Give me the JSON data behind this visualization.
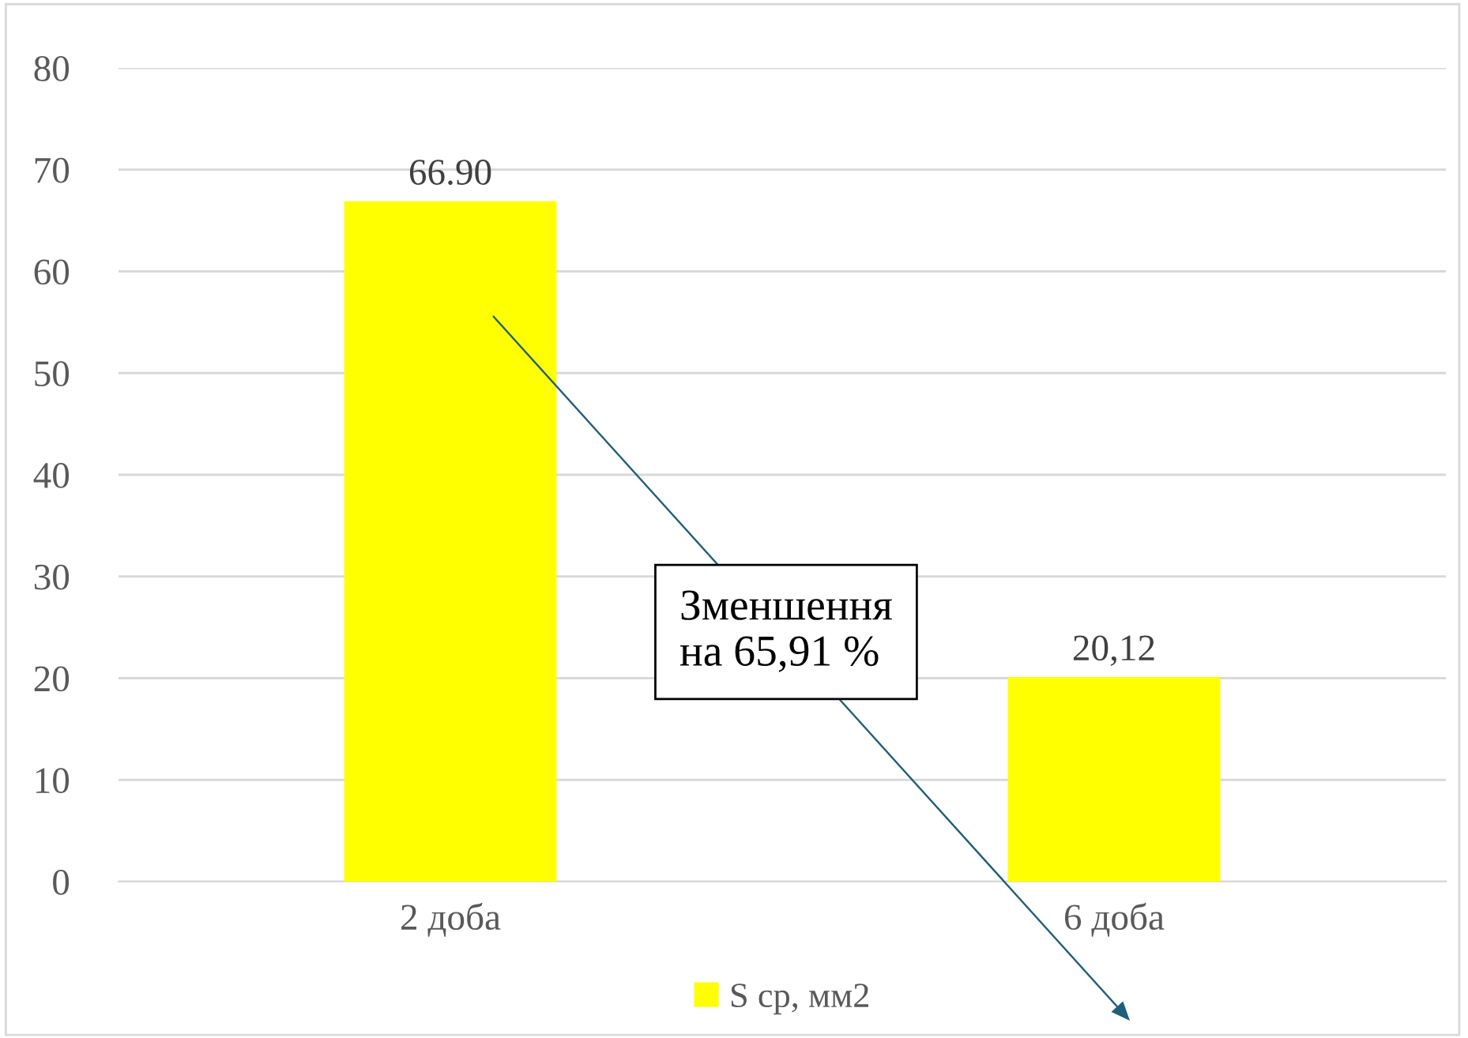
{
  "chart_data": {
    "type": "bar",
    "categories": [
      "2 доба",
      "6 доба"
    ],
    "series": [
      {
        "name": "S ср, мм2",
        "color": "#ffff00",
        "values": [
          66.9,
          20.12
        ]
      }
    ],
    "value_labels": [
      "66.90",
      "20,12"
    ],
    "ylim": [
      0,
      80
    ],
    "yticks": [
      0,
      10,
      20,
      30,
      40,
      50,
      60,
      70,
      80
    ],
    "grid": "y",
    "legend": "bottom",
    "annotations": [
      "Зменшення\nна 65,91 %"
    ]
  }
}
